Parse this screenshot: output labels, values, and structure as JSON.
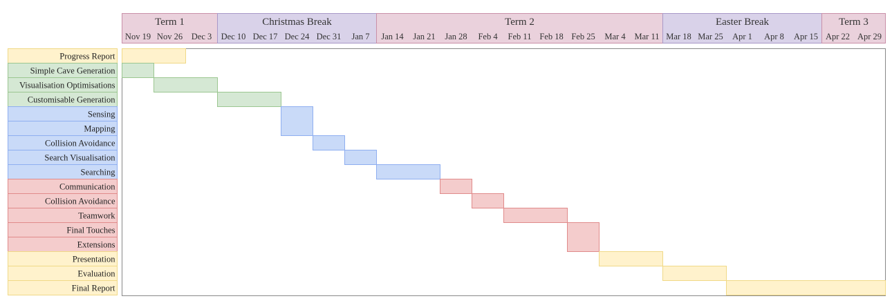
{
  "colors": {
    "yellow": {
      "fill": "#fff2cc",
      "stroke": "#f0d987"
    },
    "green": {
      "fill": "#d5e8d4",
      "stroke": "#9bc690"
    },
    "blue": {
      "fill": "#c9daf8",
      "stroke": "#8eaef0"
    },
    "red": {
      "fill": "#f4cccc",
      "stroke": "#e08a8a"
    },
    "term": {
      "fill": "#ead1dc",
      "stroke": "#c98fa8"
    },
    "break": {
      "fill": "#d9d2e9",
      "stroke": "#a898c8"
    },
    "grid_border": "#888888"
  },
  "periods": [
    {
      "label": "Term 1",
      "kind": "term",
      "start_week": 0,
      "weeks": 3
    },
    {
      "label": "Christmas Break",
      "kind": "break",
      "start_week": 3,
      "weeks": 5
    },
    {
      "label": "Term 2",
      "kind": "term",
      "start_week": 8,
      "weeks": 9
    },
    {
      "label": "Easter Break",
      "kind": "break",
      "start_week": 17,
      "weeks": 5
    },
    {
      "label": "Term 3",
      "kind": "term",
      "start_week": 22,
      "weeks": 2
    }
  ],
  "weeks": [
    "Nov 19",
    "Nov 26",
    "Dec 3",
    "Dec 10",
    "Dec 17",
    "Dec 24",
    "Dec 31",
    "Jan 7",
    "Jan 14",
    "Jan 21",
    "Jan 28",
    "Feb 4",
    "Feb 11",
    "Feb 18",
    "Feb 25",
    "Mar 4",
    "Mar 11",
    "Mar 18",
    "Mar 25",
    "Apr 1",
    "Apr 8",
    "Apr 15",
    "Apr 22",
    "Apr 29"
  ],
  "tasks": [
    {
      "label": "Progress Report",
      "color": "yellow",
      "start_week": 0,
      "end_week": 2
    },
    {
      "label": "Simple Cave Generation",
      "color": "green",
      "start_week": 0,
      "end_week": 1
    },
    {
      "label": "Visualisation Optimisations",
      "color": "green",
      "start_week": 1,
      "end_week": 3
    },
    {
      "label": "Customisable Generation",
      "color": "green",
      "start_week": 3,
      "end_week": 5
    },
    {
      "label": "Sensing",
      "color": "blue",
      "start_week": 5,
      "end_week": 6,
      "merge_next": true
    },
    {
      "label": "Mapping",
      "color": "blue",
      "start_week": 5,
      "end_week": 6,
      "merged": true
    },
    {
      "label": "Collision Avoidance",
      "color": "blue",
      "start_week": 6,
      "end_week": 7
    },
    {
      "label": "Search Visualisation",
      "color": "blue",
      "start_week": 7,
      "end_week": 8
    },
    {
      "label": "Searching",
      "color": "blue",
      "start_week": 8,
      "end_week": 10
    },
    {
      "label": "Communication",
      "color": "red",
      "start_week": 10,
      "end_week": 11
    },
    {
      "label": "Collision Avoidance",
      "color": "red",
      "start_week": 11,
      "end_week": 12
    },
    {
      "label": "Teamwork",
      "color": "red",
      "start_week": 12,
      "end_week": 14
    },
    {
      "label": "Final Touches",
      "color": "red",
      "start_week": 14,
      "end_week": 15,
      "merge_next": true
    },
    {
      "label": "Extensions",
      "color": "red",
      "start_week": 14,
      "end_week": 15,
      "merged": true
    },
    {
      "label": "Presentation",
      "color": "yellow",
      "start_week": 15,
      "end_week": 17
    },
    {
      "label": "Evaluation",
      "color": "yellow",
      "start_week": 17,
      "end_week": 19
    },
    {
      "label": "Final Report",
      "color": "yellow",
      "start_week": 19,
      "end_week": 24
    }
  ]
}
